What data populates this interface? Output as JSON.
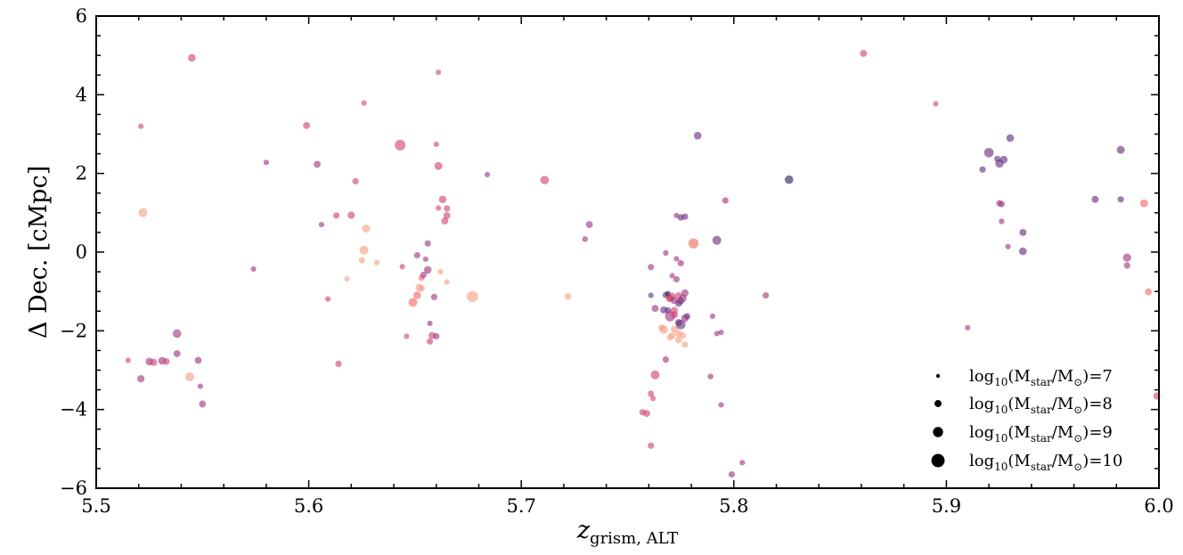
{
  "chart_data": {
    "type": "scatter",
    "title": "",
    "xlabel": "z",
    "xlabel_sub": "grism, ALT",
    "ylabel": "Δ Dec. [cMpc]",
    "xlim": [
      5.5,
      6.0
    ],
    "ylim": [
      -6,
      6
    ],
    "xticks": [
      "5.5",
      "5.6",
      "5.7",
      "5.8",
      "5.9",
      "6.0"
    ],
    "yticks": [
      "−6",
      "−4",
      "−2",
      "0",
      "2",
      "4",
      "6"
    ],
    "grid": false,
    "legend_position": "bottom-right",
    "legend": [
      {
        "pre": "log",
        "sub1": "10",
        "mid": "(M",
        "sub2": "star",
        "mid2": "/M",
        "sub3": "⊙",
        "post": ")=7",
        "logm": 7
      },
      {
        "pre": "log",
        "sub1": "10",
        "mid": "(M",
        "sub2": "star",
        "mid2": "/M",
        "sub3": "⊙",
        "post": ")=8",
        "logm": 8
      },
      {
        "pre": "log",
        "sub1": "10",
        "mid": "(M",
        "sub2": "star",
        "mid2": "/M",
        "sub3": "⊙",
        "post": ")=9",
        "logm": 9
      },
      {
        "pre": "log",
        "sub1": "10",
        "mid": "(M",
        "sub2": "star",
        "mid2": "/M",
        "sub3": "⊙",
        "post": ")=10",
        "logm": 10
      }
    ],
    "colors": [
      "#2d1e5f",
      "#6b2c7c",
      "#a0357f",
      "#d0436c",
      "#ef6b5e",
      "#f59f86"
    ],
    "points": [
      [
        5.515,
        -2.75,
        7.5,
        3
      ],
      [
        5.521,
        3.2,
        7.5,
        3
      ],
      [
        5.522,
        1.0,
        8.6,
        5
      ],
      [
        5.521,
        -3.22,
        8.1,
        2
      ],
      [
        5.525,
        -2.78,
        8.2,
        2
      ],
      [
        5.527,
        -2.8,
        8.1,
        3
      ],
      [
        5.531,
        -2.76,
        8.2,
        2
      ],
      [
        5.533,
        -2.78,
        7.9,
        3
      ],
      [
        5.538,
        -2.07,
        8.5,
        2
      ],
      [
        5.538,
        -2.58,
        8.0,
        2
      ],
      [
        5.544,
        -3.17,
        8.6,
        5
      ],
      [
        5.545,
        4.94,
        8.2,
        3
      ],
      [
        5.548,
        -2.75,
        8.0,
        2
      ],
      [
        5.549,
        -3.41,
        7.5,
        2
      ],
      [
        5.55,
        -3.86,
        8.0,
        2
      ],
      [
        5.574,
        -0.43,
        7.5,
        2
      ],
      [
        5.58,
        2.28,
        7.5,
        2
      ],
      [
        5.599,
        3.22,
        8.0,
        3
      ],
      [
        5.604,
        2.23,
        8.0,
        2
      ],
      [
        5.606,
        0.7,
        7.5,
        2
      ],
      [
        5.609,
        -1.19,
        7.5,
        3
      ],
      [
        5.613,
        0.93,
        7.8,
        3
      ],
      [
        5.614,
        -2.84,
        7.8,
        3
      ],
      [
        5.618,
        -0.68,
        7.5,
        5
      ],
      [
        5.62,
        0.94,
        8.1,
        3
      ],
      [
        5.622,
        1.8,
        7.8,
        3
      ],
      [
        5.625,
        -0.21,
        7.8,
        5
      ],
      [
        5.626,
        0.05,
        8.6,
        5
      ],
      [
        5.627,
        0.6,
        8.3,
        5
      ],
      [
        5.626,
        3.79,
        7.5,
        3
      ],
      [
        5.632,
        -0.27,
        7.5,
        5
      ],
      [
        5.643,
        2.72,
        9.2,
        3
      ],
      [
        5.644,
        -0.37,
        7.5,
        3
      ],
      [
        5.646,
        -2.14,
        7.5,
        3
      ],
      [
        5.649,
        -1.28,
        8.6,
        4
      ],
      [
        5.651,
        -1.1,
        8.2,
        4
      ],
      [
        5.652,
        -0.9,
        8.2,
        5
      ],
      [
        5.651,
        -0.08,
        7.8,
        2
      ],
      [
        5.653,
        -0.66,
        7.6,
        4
      ],
      [
        5.653,
        -0.92,
        7.9,
        5
      ],
      [
        5.654,
        -0.58,
        7.8,
        2
      ],
      [
        5.655,
        -0.18,
        7.5,
        2
      ],
      [
        5.656,
        -0.45,
        8.2,
        2
      ],
      [
        5.656,
        0.22,
        7.8,
        2
      ],
      [
        5.657,
        -1.81,
        7.5,
        2
      ],
      [
        5.657,
        -2.27,
        7.8,
        3
      ],
      [
        5.658,
        -2.12,
        8.0,
        3
      ],
      [
        5.659,
        -1.14,
        7.8,
        2
      ],
      [
        5.66,
        2.74,
        7.5,
        3
      ],
      [
        5.66,
        -2.14,
        7.8,
        2
      ],
      [
        5.661,
        4.57,
        7.5,
        3
      ],
      [
        5.661,
        2.19,
        8.3,
        3
      ],
      [
        5.661,
        1.12,
        7.5,
        3
      ],
      [
        5.662,
        -0.5,
        7.5,
        5
      ],
      [
        5.663,
        1.34,
        8.2,
        3
      ],
      [
        5.664,
        0.79,
        8.0,
        3
      ],
      [
        5.665,
        1.11,
        7.8,
        3
      ],
      [
        5.665,
        0.93,
        8.0,
        3
      ],
      [
        5.665,
        -0.76,
        7.5,
        5
      ],
      [
        5.677,
        -1.13,
        9.4,
        5
      ],
      [
        5.684,
        1.97,
        7.5,
        2
      ],
      [
        5.711,
        1.83,
        8.5,
        3
      ],
      [
        5.722,
        -1.13,
        7.9,
        5
      ],
      [
        5.73,
        0.33,
        7.6,
        2
      ],
      [
        5.732,
        0.7,
        8.0,
        2
      ],
      [
        5.757,
        -4.07,
        7.8,
        3
      ],
      [
        5.759,
        -4.1,
        8.0,
        3
      ],
      [
        5.761,
        -3.6,
        7.8,
        3
      ],
      [
        5.761,
        -0.38,
        7.8,
        2
      ],
      [
        5.761,
        -1.1,
        7.5,
        1
      ],
      [
        5.761,
        -4.92,
        7.8,
        3
      ],
      [
        5.762,
        -3.72,
        7.5,
        3
      ],
      [
        5.763,
        -3.12,
        8.6,
        3
      ],
      [
        5.763,
        -1.43,
        8.0,
        2
      ],
      [
        5.766,
        -1.92,
        7.8,
        5
      ],
      [
        5.767,
        -1.97,
        8.5,
        5
      ],
      [
        5.767,
        -1.47,
        8.0,
        1
      ],
      [
        5.768,
        -2.73,
        7.8,
        2
      ],
      [
        5.768,
        -1.09,
        7.8,
        1
      ],
      [
        5.768,
        -0.02,
        7.6,
        2
      ],
      [
        5.769,
        -1.06,
        7.6,
        0
      ],
      [
        5.769,
        -1.48,
        7.8,
        1
      ],
      [
        5.77,
        -1.18,
        8.2,
        3
      ],
      [
        5.77,
        -1.63,
        9.0,
        2
      ],
      [
        5.77,
        -2.17,
        7.8,
        5
      ],
      [
        5.77,
        -1.17,
        7.8,
        3
      ],
      [
        5.771,
        -1.12,
        8.0,
        3
      ],
      [
        5.771,
        -2.12,
        7.8,
        5
      ],
      [
        5.771,
        -0.6,
        7.5,
        2
      ],
      [
        5.772,
        -1.96,
        8.0,
        5
      ],
      [
        5.772,
        -1.23,
        8.0,
        2
      ],
      [
        5.772,
        -1.59,
        8.1,
        3
      ],
      [
        5.772,
        -1.48,
        8.0,
        3
      ],
      [
        5.773,
        -0.69,
        7.8,
        2
      ],
      [
        5.773,
        -0.17,
        7.5,
        2
      ],
      [
        5.773,
        0.93,
        7.5,
        2
      ],
      [
        5.774,
        -2.07,
        8.0,
        5
      ],
      [
        5.774,
        -1.11,
        8.0,
        3
      ],
      [
        5.774,
        -1.79,
        8.0,
        1
      ],
      [
        5.774,
        -1.3,
        8.0,
        1
      ],
      [
        5.774,
        -2.23,
        8.0,
        5
      ],
      [
        5.775,
        -1.24,
        8.0,
        1
      ],
      [
        5.775,
        -1.84,
        8.8,
        1
      ],
      [
        5.775,
        0.88,
        7.8,
        1
      ],
      [
        5.775,
        -0.28,
        7.8,
        2
      ],
      [
        5.776,
        -1.17,
        8.2,
        2
      ],
      [
        5.776,
        -2.12,
        7.8,
        5
      ],
      [
        5.777,
        0.9,
        7.8,
        1
      ],
      [
        5.777,
        -1.68,
        8.2,
        2
      ],
      [
        5.777,
        -1.04,
        8.1,
        2
      ],
      [
        5.777,
        -2.35,
        7.8,
        5
      ],
      [
        5.778,
        -1.63,
        7.8,
        1
      ],
      [
        5.781,
        0.22,
        9.0,
        4
      ],
      [
        5.783,
        2.96,
        8.2,
        1
      ],
      [
        5.789,
        -3.16,
        7.6,
        2
      ],
      [
        5.79,
        -1.63,
        7.5,
        2
      ],
      [
        5.792,
        0.3,
        8.6,
        1
      ],
      [
        5.792,
        -2.07,
        7.5,
        2
      ],
      [
        5.794,
        -2.04,
        7.5,
        2
      ],
      [
        5.794,
        -3.88,
        7.5,
        2
      ],
      [
        5.796,
        1.31,
        7.8,
        2
      ],
      [
        5.799,
        -5.65,
        7.8,
        2
      ],
      [
        5.804,
        -5.35,
        7.5,
        2
      ],
      [
        5.815,
        -1.1,
        7.8,
        2
      ],
      [
        5.826,
        1.84,
        8.5,
        0
      ],
      [
        5.861,
        5.05,
        8.0,
        3
      ],
      [
        5.895,
        3.77,
        7.5,
        3
      ],
      [
        5.91,
        -1.92,
        7.5,
        2
      ],
      [
        5.917,
        2.1,
        7.8,
        1
      ],
      [
        5.92,
        2.53,
        8.8,
        1
      ],
      [
        5.924,
        2.37,
        7.8,
        1
      ],
      [
        5.925,
        2.25,
        8.4,
        1
      ],
      [
        5.925,
        1.24,
        7.8,
        2
      ],
      [
        5.926,
        0.78,
        7.6,
        2
      ],
      [
        5.926,
        1.22,
        7.8,
        2
      ],
      [
        5.927,
        2.35,
        8.2,
        1
      ],
      [
        5.929,
        0.14,
        7.5,
        2
      ],
      [
        5.93,
        2.9,
        8.2,
        1
      ],
      [
        5.936,
        0.02,
        8.2,
        1
      ],
      [
        5.936,
        0.5,
        8.0,
        1
      ],
      [
        5.97,
        1.34,
        8.0,
        1
      ],
      [
        5.982,
        2.6,
        8.3,
        1
      ],
      [
        5.982,
        1.34,
        7.8,
        1
      ],
      [
        5.985,
        -0.34,
        7.8,
        2
      ],
      [
        5.985,
        -0.14,
        8.4,
        2
      ],
      [
        5.993,
        1.24,
        8.3,
        4
      ],
      [
        5.995,
        -1.01,
        8.0,
        4
      ],
      [
        5.999,
        -3.66,
        8.0,
        3
      ]
    ]
  }
}
